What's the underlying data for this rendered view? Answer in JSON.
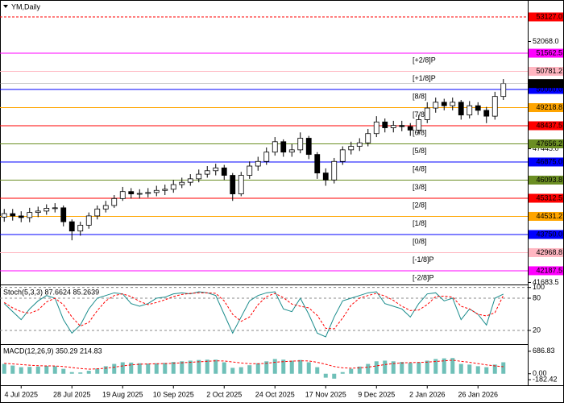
{
  "chart_data": [
    {
      "type": "candlestick",
      "title": "YM,Daily",
      "categories": [
        null,
        null,
        "4 Jul 2025",
        null,
        null,
        null,
        null,
        null,
        "28 Jul 2025",
        null,
        null,
        null,
        null,
        null,
        "19 Aug 2025",
        null,
        null,
        null,
        null,
        null,
        "10 Sep 2025",
        null,
        null,
        null,
        null,
        null,
        "2 Oct 2025",
        null,
        null,
        null,
        null,
        null,
        "24 Oct 2025",
        null,
        null,
        null,
        null,
        null,
        "17 Nov 2025",
        null,
        null,
        null,
        null,
        null,
        "9 Dec 2025",
        null,
        null,
        null,
        null,
        null,
        "2 Jan 2026",
        null,
        null,
        null,
        null,
        null,
        "26 Jan 2026",
        null,
        null,
        null
      ],
      "open": [
        44500,
        44650,
        44550,
        44480,
        44700,
        44760,
        44880,
        44900,
        44300,
        43900,
        44150,
        44550,
        44850,
        45000,
        45300,
        45600,
        45500,
        45520,
        45560,
        45650,
        45700,
        45900,
        46000,
        46150,
        46350,
        46500,
        46620,
        46300,
        45500,
        46300,
        46700,
        46900,
        47300,
        47750,
        47300,
        47400,
        47900,
        47200,
        46400,
        46100,
        46900,
        47400,
        47550,
        47700,
        48100,
        48600,
        48350,
        48450,
        48400,
        48250,
        48700,
        49200,
        49450,
        49300,
        49450,
        48900,
        49300,
        49100,
        48850,
        49700
      ],
      "high": [
        44850,
        44850,
        44750,
        44900,
        44950,
        45050,
        45100,
        45000,
        44400,
        44300,
        44700,
        45000,
        45200,
        45450,
        45800,
        45750,
        45700,
        45750,
        45850,
        45900,
        46100,
        46200,
        46350,
        46550,
        46700,
        46800,
        46750,
        46400,
        46450,
        46900,
        47100,
        47500,
        47950,
        47850,
        47650,
        48150,
        48000,
        47300,
        46600,
        47050,
        47550,
        47750,
        47900,
        48300,
        48850,
        48750,
        48650,
        48650,
        48550,
        48900,
        49450,
        49650,
        49600,
        49650,
        49550,
        49500,
        49450,
        49250,
        49900,
        50450
      ],
      "low": [
        44300,
        44350,
        44280,
        44280,
        44500,
        44600,
        44700,
        44100,
        43500,
        43700,
        44000,
        44400,
        44700,
        44900,
        45200,
        45300,
        45300,
        45350,
        45400,
        45450,
        45550,
        45750,
        45850,
        46000,
        46200,
        46300,
        46100,
        45200,
        45400,
        46150,
        46500,
        46750,
        47150,
        47100,
        47100,
        47250,
        47000,
        46150,
        45850,
        45950,
        46750,
        47200,
        47350,
        47550,
        47950,
        48150,
        48150,
        48200,
        48000,
        48100,
        48550,
        49000,
        49100,
        49100,
        48700,
        48750,
        48900,
        48550,
        48700,
        49550
      ],
      "close": [
        44650,
        44550,
        44480,
        44700,
        44760,
        44880,
        44900,
        44300,
        43900,
        44150,
        44550,
        44850,
        45000,
        45300,
        45600,
        45500,
        45520,
        45560,
        45650,
        45700,
        45900,
        46000,
        46150,
        46350,
        46500,
        46620,
        46300,
        45500,
        46300,
        46700,
        46900,
        47300,
        47750,
        47300,
        47400,
        47900,
        47200,
        46400,
        46100,
        46900,
        47400,
        47550,
        47700,
        48100,
        48600,
        48350,
        48450,
        48400,
        48250,
        48700,
        49200,
        49450,
        49300,
        49450,
        48900,
        49300,
        49100,
        48850,
        49700,
        50255.7
      ],
      "ylim": [
        41630,
        53370
      ],
      "yticks": [
        {
          "value": 52068,
          "label": "52068.0"
        },
        {
          "value": 47445,
          "label": "47445.0"
        },
        {
          "value": 41683.5,
          "label": "41683.5"
        }
      ],
      "levels": [
        {
          "value": 53127,
          "value_label": "53127.0",
          "color": "#ff0000",
          "dashed": true
        },
        {
          "name": "[+2/8]P",
          "value": 51562.5,
          "value_label": "51562.5",
          "color": "#ff00ff"
        },
        {
          "name": "[+1/8]P",
          "value": 50781.2,
          "value_label": "50781.2",
          "color": "#ffb6c1"
        },
        {
          "name": "[8/8]",
          "value": 50000,
          "value_label": "50000.0",
          "color": "#0000ff"
        },
        {
          "name": "[7/8]",
          "value": 49218.8,
          "value_label": "49218.8",
          "color": "#ffa500"
        },
        {
          "name": "[6/8]",
          "value": 48437.5,
          "value_label": "48437.5",
          "color": "#ff0000"
        },
        {
          "name": "[5/8]",
          "value": 47656.2,
          "value_label": "47656.2",
          "color": "#6b8e23"
        },
        {
          "name": "[4/8]",
          "value": 46875,
          "value_label": "46875.0",
          "color": "#0000ff"
        },
        {
          "name": "[3/8]",
          "value": 46093.8,
          "value_label": "46093.8",
          "color": "#6b8e23"
        },
        {
          "name": "[2/8]",
          "value": 45312.5,
          "value_label": "45312.5",
          "color": "#ff0000"
        },
        {
          "name": "[1/8]",
          "value": 44531.2,
          "value_label": "44531.2",
          "color": "#ffa500"
        },
        {
          "name": "[0/8]",
          "value": 43750,
          "value_label": "43750.0",
          "color": "#0000ff"
        },
        {
          "name": "[-1/8]P",
          "value": 42968.8,
          "value_label": "42968.8",
          "color": "#ffb6c1"
        },
        {
          "name": "[-2/8]P",
          "value": 42187.5,
          "value_label": "42187.5",
          "color": "#ff00ff"
        }
      ],
      "last_price": {
        "value": 50255.7,
        "label": "50255.7"
      }
    },
    {
      "type": "line",
      "title": "Stoch(5,3,3) 87.6624 85.2639",
      "ylim": [
        -2.5,
        101
      ],
      "yticks": [
        100,
        80,
        20
      ],
      "grid": true,
      "series": [
        {
          "color": "#1a8c8c",
          "values": [
            70,
            55,
            40,
            60,
            75,
            85,
            80,
            40,
            15,
            30,
            60,
            80,
            85,
            90,
            88,
            70,
            65,
            70,
            80,
            82,
            88,
            90,
            88,
            92,
            90,
            85,
            50,
            15,
            45,
            75,
            85,
            90,
            92,
            60,
            55,
            80,
            50,
            15,
            8,
            45,
            75,
            80,
            85,
            90,
            92,
            70,
            65,
            60,
            45,
            70,
            88,
            90,
            75,
            80,
            40,
            60,
            50,
            30,
            80,
            87.6624
          ]
        },
        {
          "color": "#ff0000",
          "dashed": true,
          "values": [
            72,
            62,
            55,
            52,
            58,
            73,
            80,
            68,
            45,
            28,
            35,
            57,
            75,
            85,
            88,
            83,
            74,
            68,
            72,
            77,
            83,
            87,
            89,
            90,
            90,
            89,
            75,
            50,
            37,
            45,
            68,
            83,
            89,
            81,
            69,
            65,
            62,
            48,
            24,
            23,
            43,
            67,
            80,
            85,
            89,
            84,
            76,
            65,
            57,
            58,
            68,
            83,
            84,
            82,
            65,
            60,
            50,
            47,
            53,
            85.2639
          ]
        }
      ]
    },
    {
      "type": "bar",
      "title": "MACD(12,26,9) 350.29 214.83",
      "ylim": [
        -351,
        855
      ],
      "yticks": [
        {
          "value": 686.83,
          "label": "686.83"
        },
        {
          "value": 0,
          "label": "0.00"
        },
        {
          "value": -182.42,
          "label": "-182.42"
        }
      ],
      "color": "#6fc0b8",
      "values": [
        300,
        250,
        200,
        210,
        220,
        240,
        230,
        150,
        50,
        40,
        90,
        160,
        230,
        300,
        350,
        340,
        320,
        310,
        320,
        330,
        360,
        380,
        400,
        420,
        430,
        430,
        350,
        180,
        200,
        260,
        320,
        380,
        450,
        430,
        400,
        420,
        350,
        200,
        -120,
        -150,
        50,
        150,
        220,
        300,
        380,
        400,
        380,
        360,
        330,
        350,
        400,
        450,
        470,
        480,
        300,
        280,
        230,
        200,
        280,
        350.29
      ],
      "series": [
        {
          "color": "#ff0000",
          "dashed": true,
          "values": [
            320,
            300,
            280,
            260,
            245,
            240,
            238,
            220,
            190,
            160,
            140,
            150,
            170,
            200,
            240,
            270,
            290,
            300,
            305,
            310,
            320,
            335,
            350,
            365,
            380,
            395,
            390,
            360,
            330,
            310,
            305,
            320,
            350,
            370,
            385,
            395,
            390,
            350,
            290,
            220,
            180,
            170,
            180,
            200,
            240,
            280,
            310,
            330,
            340,
            345,
            355,
            375,
            395,
            415,
            380,
            350,
            310,
            270,
            240,
            214.83
          ]
        }
      ]
    }
  ]
}
